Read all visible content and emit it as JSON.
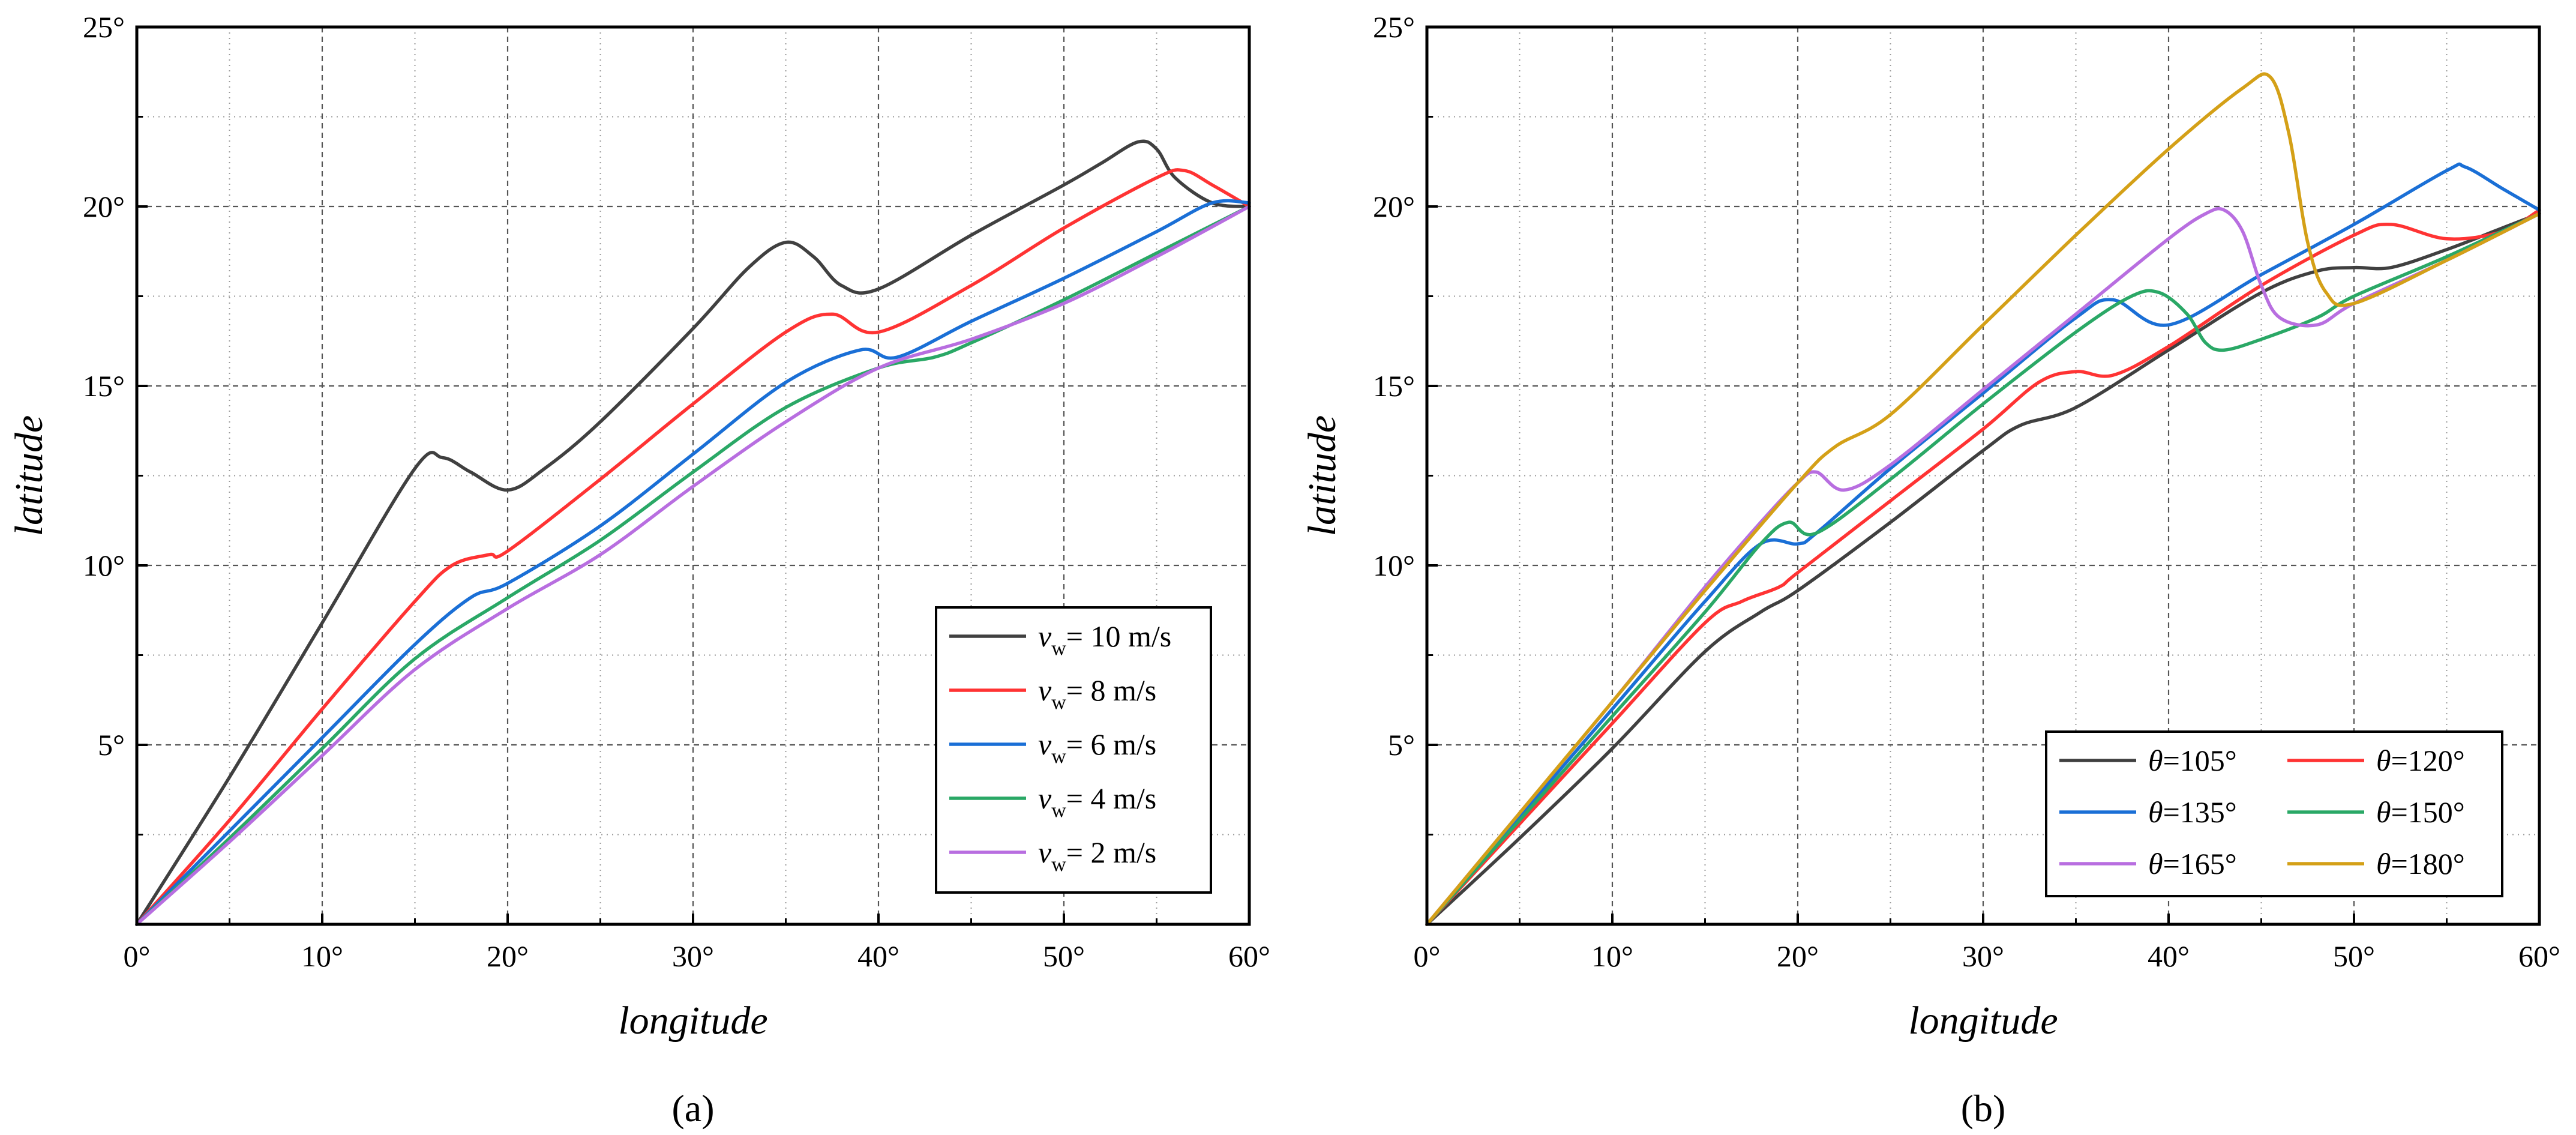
{
  "chart_data": [
    {
      "panel": "(a)",
      "type": "line",
      "xlabel": "longitude",
      "ylabel": "latitude",
      "xlim": [
        0,
        60
      ],
      "ylim": [
        0,
        25
      ],
      "x_ticks": [
        "0°",
        "10°",
        "20°",
        "30°",
        "40°",
        "50°",
        "60°"
      ],
      "y_ticks": [
        "5°",
        "10°",
        "15°",
        "20°",
        "25°"
      ],
      "grid": true,
      "legend_position": "bottom-right",
      "legend_columns": 1,
      "legend_symbol": "v",
      "legend_subscript": "w",
      "series": [
        {
          "name": "v_w = 10 m/s",
          "label_value": "= 10 m/s",
          "color": "#404040",
          "x": [
            0,
            5,
            10,
            15,
            16.5,
            18,
            20,
            22,
            25,
            30,
            33,
            35,
            36.5,
            38,
            40,
            45,
            50,
            52,
            54,
            55,
            56,
            58,
            60
          ],
          "y": [
            0,
            4.1,
            8.4,
            12.7,
            13.0,
            12.6,
            12.1,
            12.7,
            14.0,
            16.6,
            18.3,
            19.0,
            18.6,
            17.8,
            17.7,
            19.2,
            20.6,
            21.2,
            21.8,
            21.6,
            20.8,
            20.1,
            20.0
          ]
        },
        {
          "name": "v_w = 8 m/s",
          "label_value": "=  8 m/s",
          "color": "#ff3333",
          "x": [
            0,
            5,
            10,
            15,
            17,
            19,
            20,
            25,
            30,
            35,
            37.5,
            40,
            45,
            50,
            55,
            56.5,
            58,
            60
          ],
          "y": [
            0,
            2.9,
            6.0,
            9.0,
            10.0,
            10.3,
            10.4,
            12.4,
            14.5,
            16.5,
            17.0,
            16.5,
            17.8,
            19.4,
            20.8,
            21.0,
            20.6,
            20.0
          ]
        },
        {
          "name": "v_w = 6 m/s",
          "label_value": "=  6 m/s",
          "color": "#1a6fd6",
          "x": [
            0,
            5,
            10,
            15,
            18,
            20,
            25,
            30,
            35,
            39,
            41,
            45,
            50,
            55,
            58,
            60
          ],
          "y": [
            0,
            2.6,
            5.2,
            7.8,
            9.1,
            9.5,
            11.1,
            13.1,
            15.1,
            16.0,
            15.8,
            16.8,
            18.0,
            19.3,
            20.1,
            20.1
          ]
        },
        {
          "name": "v_w = 4 m/s",
          "label_value": "=  4 m/s",
          "color": "#2aa866",
          "x": [
            0,
            5,
            10,
            15,
            20,
            25,
            30,
            35,
            40,
            43,
            45,
            50,
            55,
            60
          ],
          "y": [
            0,
            2.4,
            4.9,
            7.4,
            9.1,
            10.7,
            12.6,
            14.4,
            15.5,
            15.8,
            16.2,
            17.4,
            18.7,
            20.0
          ]
        },
        {
          "name": "v_w = 2 m/s",
          "label_value": "=  2 m/s",
          "color": "#b86ee0",
          "x": [
            0,
            5,
            10,
            15,
            20,
            25,
            30,
            35,
            40,
            45,
            50,
            55,
            60
          ],
          "y": [
            0,
            2.3,
            4.7,
            7.1,
            8.8,
            10.3,
            12.2,
            14.0,
            15.5,
            16.3,
            17.3,
            18.6,
            20.0
          ]
        }
      ]
    },
    {
      "panel": "(b)",
      "type": "line",
      "xlabel": "longitude",
      "ylabel": "latitude",
      "xlim": [
        0,
        60
      ],
      "ylim": [
        0,
        25
      ],
      "x_ticks": [
        "0°",
        "10°",
        "20°",
        "30°",
        "40°",
        "50°",
        "60°"
      ],
      "y_ticks": [
        "5°",
        "10°",
        "15°",
        "20°",
        "25°"
      ],
      "grid": true,
      "legend_position": "bottom-right",
      "legend_columns": 2,
      "legend_symbol": "θ",
      "series": [
        {
          "name": "θ=105°",
          "label_value": "=105°",
          "color": "#404040",
          "x": [
            0,
            5,
            10,
            15,
            18,
            20,
            25,
            30,
            32,
            35,
            40,
            45,
            48,
            50,
            52,
            55,
            58,
            60
          ],
          "y": [
            0,
            2.4,
            4.9,
            7.6,
            8.7,
            9.3,
            11.2,
            13.2,
            13.9,
            14.4,
            16.0,
            17.6,
            18.2,
            18.3,
            18.3,
            18.8,
            19.4,
            19.8
          ]
        },
        {
          "name": "θ=120°",
          "label_value": "=120°",
          "color": "#ff3333",
          "x": [
            0,
            5,
            10,
            15,
            17,
            19,
            20,
            25,
            30,
            33,
            35,
            37,
            40,
            45,
            50,
            52,
            55,
            58,
            60
          ],
          "y": [
            0,
            2.8,
            5.6,
            8.4,
            9.0,
            9.4,
            9.8,
            11.8,
            13.8,
            15.1,
            15.4,
            15.3,
            16.1,
            17.8,
            19.2,
            19.5,
            19.1,
            19.3,
            19.9
          ]
        },
        {
          "name": "θ=135°",
          "label_value": "=135°",
          "color": "#1a6fd6",
          "x": [
            0,
            5,
            10,
            15,
            18,
            20,
            21,
            25,
            30,
            35,
            37,
            40,
            45,
            50,
            55,
            56,
            58,
            60
          ],
          "y": [
            0,
            3.0,
            6.0,
            9.0,
            10.6,
            10.6,
            10.9,
            12.7,
            14.8,
            16.9,
            17.4,
            16.7,
            18.1,
            19.5,
            21.0,
            21.1,
            20.5,
            19.9
          ]
        },
        {
          "name": "θ=150°",
          "label_value": "=150°",
          "color": "#2aa866",
          "x": [
            0,
            5,
            10,
            15,
            18,
            19.5,
            21,
            25,
            30,
            35,
            38,
            39.5,
            41,
            42,
            43,
            45,
            48,
            50,
            55,
            60
          ],
          "y": [
            0,
            2.9,
            5.8,
            8.7,
            10.6,
            11.2,
            10.9,
            12.4,
            14.5,
            16.5,
            17.5,
            17.6,
            17.0,
            16.2,
            16.0,
            16.3,
            16.9,
            17.5,
            18.6,
            19.8
          ]
        },
        {
          "name": "θ=165°",
          "label_value": "=165°",
          "color": "#b86ee0",
          "x": [
            0,
            5,
            10,
            15,
            18,
            20,
            21,
            22.5,
            25,
            30,
            35,
            40,
            42,
            43,
            44,
            45,
            46,
            48,
            50,
            55,
            60
          ],
          "y": [
            0,
            3.1,
            6.2,
            9.4,
            11.2,
            12.3,
            12.6,
            12.1,
            12.8,
            14.9,
            17.0,
            19.1,
            19.8,
            19.9,
            19.3,
            17.8,
            16.9,
            16.7,
            17.3,
            18.5,
            19.8
          ]
        },
        {
          "name": "θ=180°",
          "label_value": "=180°",
          "color": "#d4a017",
          "x": [
            0,
            5,
            10,
            15,
            20,
            22,
            25,
            30,
            35,
            40,
            44,
            45.5,
            46.5,
            47.5,
            48.5,
            50,
            55,
            60
          ],
          "y": [
            0,
            3.1,
            6.2,
            9.3,
            12.3,
            13.3,
            14.2,
            16.7,
            19.2,
            21.6,
            23.3,
            23.6,
            22.0,
            19.0,
            17.6,
            17.3,
            18.5,
            19.8
          ]
        }
      ]
    }
  ]
}
